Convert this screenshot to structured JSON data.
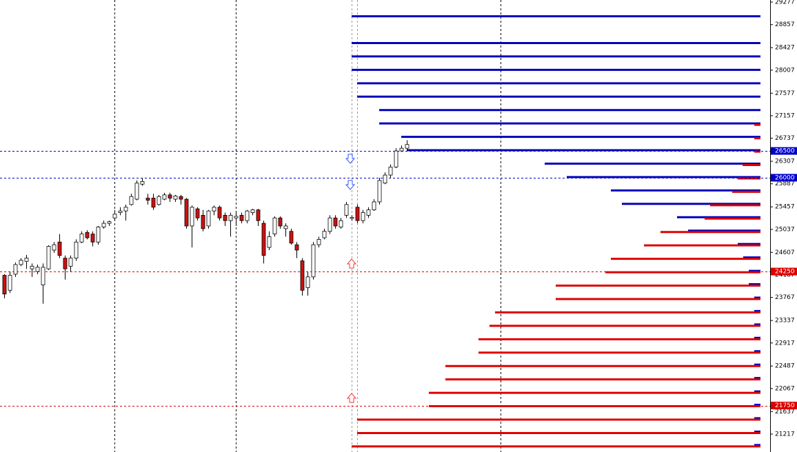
{
  "chart_data": {
    "type": "candlestick",
    "ylim": [
      20883,
      29316
    ],
    "yticks": [
      29277,
      28857,
      28427,
      28007,
      27577,
      27157,
      26737,
      26307,
      25887,
      25457,
      25037,
      24607,
      24187,
      23767,
      23337,
      22917,
      22487,
      22067,
      21637,
      21217
    ],
    "price_lines": [
      {
        "value": 26500,
        "color": "#0000cc"
      },
      {
        "value": 26000,
        "color": "#0000cc"
      },
      {
        "value": 24250,
        "color": "#dd0000"
      },
      {
        "value": 21750,
        "color": "#dd0000"
      }
    ],
    "up_color": "#ffffff",
    "down_color": "#cc1111",
    "candles": [
      {
        "open": 24180,
        "high": 24200,
        "low": 23750,
        "close": 23830
      },
      {
        "open": 23900,
        "high": 24250,
        "low": 23850,
        "close": 24180
      },
      {
        "open": 24200,
        "high": 24420,
        "low": 24150,
        "close": 24380
      },
      {
        "open": 24380,
        "high": 24500,
        "low": 24350,
        "close": 24460
      },
      {
        "open": 24440,
        "high": 24560,
        "low": 24300,
        "close": 24500
      },
      {
        "open": 24300,
        "high": 24400,
        "low": 24150,
        "close": 24350
      },
      {
        "open": 24250,
        "high": 24380,
        "low": 24200,
        "close": 24330
      },
      {
        "open": 24000,
        "high": 24400,
        "low": 23650,
        "close": 24330
      },
      {
        "open": 24300,
        "high": 24740,
        "low": 24280,
        "close": 24720
      },
      {
        "open": 24650,
        "high": 24800,
        "low": 24600,
        "close": 24750
      },
      {
        "open": 24800,
        "high": 24950,
        "low": 24500,
        "close": 24550
      },
      {
        "open": 24500,
        "high": 24550,
        "low": 24100,
        "close": 24300
      },
      {
        "open": 24350,
        "high": 24550,
        "low": 24250,
        "close": 24500
      },
      {
        "open": 24500,
        "high": 24850,
        "low": 24450,
        "close": 24800
      },
      {
        "open": 24800,
        "high": 25000,
        "low": 24780,
        "close": 24950
      },
      {
        "open": 24980,
        "high": 25020,
        "low": 24850,
        "close": 24880
      },
      {
        "open": 24950,
        "high": 25000,
        "low": 24720,
        "close": 24800
      },
      {
        "open": 24800,
        "high": 25100,
        "low": 24750,
        "close": 25080
      },
      {
        "open": 25080,
        "high": 25200,
        "low": 25050,
        "close": 25150
      },
      {
        "open": 25150,
        "high": 25200,
        "low": 25100,
        "close": 25180
      },
      {
        "open": 25250,
        "high": 25400,
        "low": 25200,
        "close": 25320
      },
      {
        "open": 25350,
        "high": 25450,
        "low": 25300,
        "close": 25380
      },
      {
        "open": 25380,
        "high": 25500,
        "low": 25200,
        "close": 25450
      },
      {
        "open": 25500,
        "high": 25700,
        "low": 25480,
        "close": 25650
      },
      {
        "open": 25600,
        "high": 25950,
        "low": 25580,
        "close": 25900
      },
      {
        "open": 25880,
        "high": 26000,
        "low": 25850,
        "close": 25930
      },
      {
        "open": 25620,
        "high": 25700,
        "low": 25500,
        "close": 25580
      },
      {
        "open": 25620,
        "high": 25700,
        "low": 25400,
        "close": 25450
      },
      {
        "open": 25500,
        "high": 25680,
        "low": 25480,
        "close": 25650
      },
      {
        "open": 25600,
        "high": 25720,
        "low": 25580,
        "close": 25680
      },
      {
        "open": 25680,
        "high": 25720,
        "low": 25550,
        "close": 25620
      },
      {
        "open": 25600,
        "high": 25680,
        "low": 25550,
        "close": 25660
      },
      {
        "open": 25650,
        "high": 25680,
        "low": 25500,
        "close": 25600
      },
      {
        "open": 25600,
        "high": 25620,
        "low": 25050,
        "close": 25100
      },
      {
        "open": 25100,
        "high": 25480,
        "low": 24700,
        "close": 25450
      },
      {
        "open": 25420,
        "high": 25450,
        "low": 25200,
        "close": 25250
      },
      {
        "open": 25300,
        "high": 25400,
        "low": 25000,
        "close": 25050
      },
      {
        "open": 25100,
        "high": 25400,
        "low": 25050,
        "close": 25380
      },
      {
        "open": 25380,
        "high": 25480,
        "low": 25300,
        "close": 25450
      },
      {
        "open": 25450,
        "high": 25480,
        "low": 25200,
        "close": 25250
      },
      {
        "open": 25300,
        "high": 25350,
        "low": 25100,
        "close": 25200
      },
      {
        "open": 25200,
        "high": 25350,
        "low": 24900,
        "close": 25300
      },
      {
        "open": 25250,
        "high": 25350,
        "low": 25100,
        "close": 25280
      },
      {
        "open": 25300,
        "high": 25350,
        "low": 25150,
        "close": 25200
      },
      {
        "open": 25200,
        "high": 25400,
        "low": 25150,
        "close": 25380
      },
      {
        "open": 25350,
        "high": 25420,
        "low": 25300,
        "close": 25400
      },
      {
        "open": 25400,
        "high": 25420,
        "low": 25100,
        "close": 25200
      },
      {
        "open": 25150,
        "high": 25200,
        "low": 24400,
        "close": 24550
      },
      {
        "open": 24700,
        "high": 25000,
        "low": 24650,
        "close": 24900
      },
      {
        "open": 24950,
        "high": 25280,
        "low": 24900,
        "close": 25250
      },
      {
        "open": 25250,
        "high": 25280,
        "low": 25050,
        "close": 25100
      },
      {
        "open": 25050,
        "high": 25150,
        "low": 24900,
        "close": 25100
      },
      {
        "open": 25000,
        "high": 25050,
        "low": 24750,
        "close": 24780
      },
      {
        "open": 24750,
        "high": 24800,
        "low": 24500,
        "close": 24650
      },
      {
        "open": 24450,
        "high": 24500,
        "low": 23800,
        "close": 23900
      },
      {
        "open": 23950,
        "high": 24250,
        "low": 23800,
        "close": 24150
      },
      {
        "open": 24150,
        "high": 24800,
        "low": 24100,
        "close": 24750
      },
      {
        "open": 24750,
        "high": 24900,
        "low": 24700,
        "close": 24850
      },
      {
        "open": 24880,
        "high": 25050,
        "low": 24850,
        "close": 25000
      },
      {
        "open": 25000,
        "high": 25300,
        "low": 24950,
        "close": 25250
      },
      {
        "open": 25250,
        "high": 25300,
        "low": 25050,
        "close": 25100
      },
      {
        "open": 25080,
        "high": 25250,
        "low": 25050,
        "close": 25200
      },
      {
        "open": 25300,
        "high": 25550,
        "low": 25250,
        "close": 25500
      },
      {
        "open": 25240,
        "high": 25300,
        "low": 25200,
        "close": 25260
      },
      {
        "open": 25450,
        "high": 25500,
        "low": 25150,
        "close": 25200
      },
      {
        "open": 25200,
        "high": 25400,
        "low": 25150,
        "close": 25350
      },
      {
        "open": 25300,
        "high": 25450,
        "low": 25250,
        "close": 25400
      },
      {
        "open": 25400,
        "high": 25600,
        "low": 25380,
        "close": 25550
      },
      {
        "open": 25550,
        "high": 26000,
        "low": 25500,
        "close": 25950
      },
      {
        "open": 25900,
        "high": 26100,
        "low": 25880,
        "close": 26050
      },
      {
        "open": 26050,
        "high": 26250,
        "low": 26000,
        "close": 26200
      },
      {
        "open": 26200,
        "high": 26550,
        "low": 26180,
        "close": 26500
      },
      {
        "open": 26500,
        "high": 26600,
        "low": 26480,
        "close": 26550
      },
      {
        "open": 26550,
        "high": 26700,
        "low": 26500,
        "close": 26620
      }
    ],
    "levels": {
      "strikes": [
        29000,
        28750,
        28500,
        28250,
        28000,
        27750,
        27500,
        27250,
        27000,
        26750,
        26500,
        26250,
        26000,
        25750,
        25500,
        25250,
        25000,
        24750,
        24500,
        24250,
        24000,
        23750,
        23500,
        23250,
        23000,
        22750,
        22500,
        22250,
        22000,
        21750,
        21500,
        21250,
        21000
      ],
      "series": [
        {
          "color": "#0000bb",
          "values": [
            593,
            0,
            593,
            593,
            593,
            585,
            585,
            553,
            553,
            521,
            513,
            313,
            281,
            217,
            201,
            121,
            105,
            33,
            25,
            17,
            17,
            9,
            9,
            9,
            9,
            9,
            9,
            9,
            9,
            9,
            9,
            9,
            9
          ]
        },
        {
          "color": "#dd0000",
          "values": [
            0,
            0,
            0,
            0,
            0,
            0,
            0,
            0,
            9,
            9,
            9,
            26,
            33,
            41,
            73,
            81,
            145,
            169,
            217,
            225,
            297,
            297,
            385,
            393,
            409,
            409,
            457,
            457,
            481,
            481,
            585,
            585,
            593
          ]
        }
      ]
    }
  }
}
